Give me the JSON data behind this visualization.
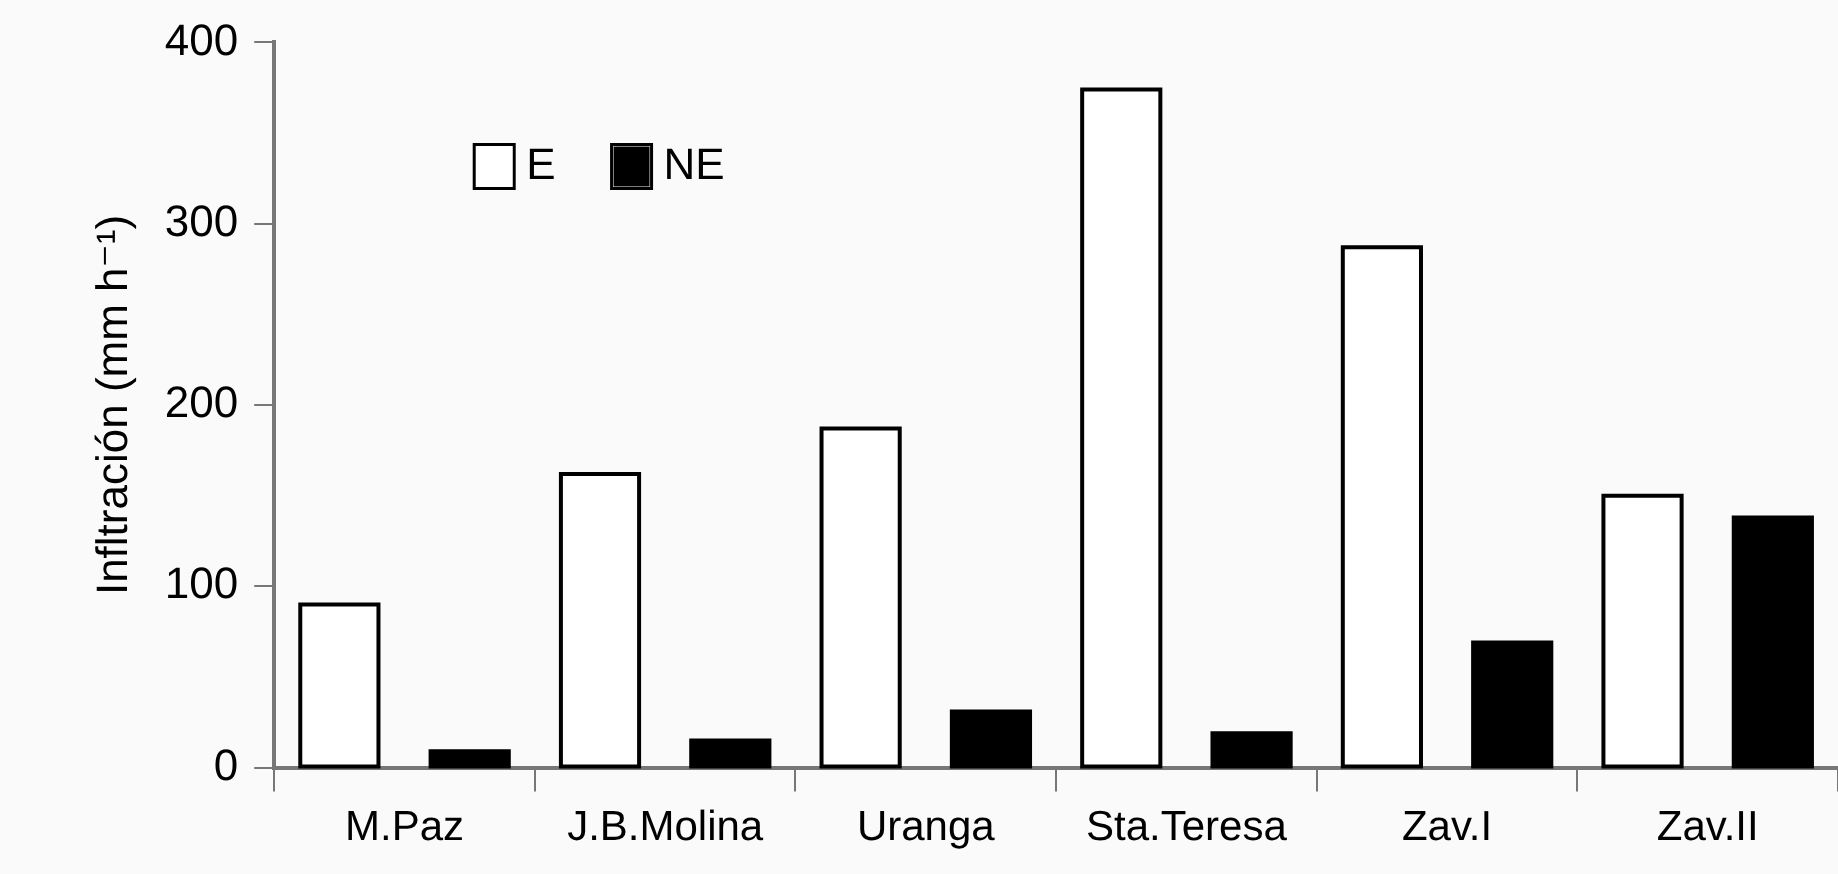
{
  "chart_data": {
    "type": "bar",
    "ylabel": "Infltración (mm h⁻¹)",
    "categories": [
      "M.Paz",
      "J.B.Molina",
      "Uranga",
      "Sta.Teresa",
      "Zav.I",
      "Zav.II"
    ],
    "series": [
      {
        "name": "E",
        "color": "#ffffff",
        "values": [
          90,
          162,
          187,
          374,
          287,
          150
        ]
      },
      {
        "name": "NE",
        "color": "#000000",
        "values": [
          9,
          15,
          31,
          19,
          69,
          138
        ]
      }
    ],
    "ylim": [
      0,
      400
    ],
    "yticks": [
      0,
      100,
      200,
      300,
      400
    ],
    "grid": false,
    "legend": "top left"
  }
}
